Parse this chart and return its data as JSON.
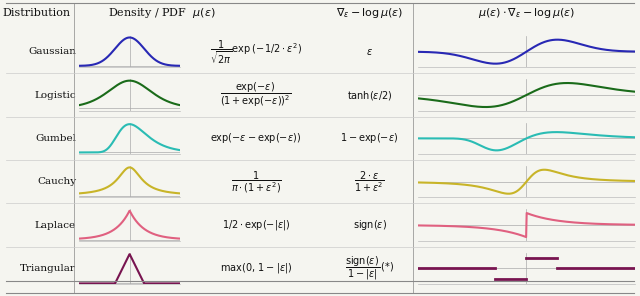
{
  "distributions": [
    "Gaussian",
    "Logistic",
    "Gumbel",
    "Cauchy",
    "Laplace",
    "Triangular"
  ],
  "colors": [
    "#2828b4",
    "#1a6b1a",
    "#2abcb4",
    "#c8b428",
    "#e06080",
    "#781450"
  ],
  "header_texts": {
    "col1": "Distribution",
    "col2": "Density / PDF  $\\mu(\\epsilon)$",
    "col3": "$\\nabla_\\epsilon - \\log \\mu(\\epsilon)$",
    "col4": "$\\mu(\\epsilon) \\cdot \\nabla_\\epsilon - \\log \\mu(\\epsilon)$"
  },
  "pdf_formulas": [
    "$\\dfrac{1}{\\sqrt{2\\pi}} \\exp\\left(-\\,1/2 \\cdot \\epsilon^2\\right)$",
    "$\\dfrac{\\exp(-\\epsilon)}{(1+\\exp(-\\epsilon))^2}$",
    "$\\exp(-\\epsilon - \\exp(-\\epsilon))$",
    "$\\dfrac{1}{\\pi \\cdot (1+\\epsilon^2)}$",
    "$1/2 \\cdot \\exp(-|\\epsilon|)$",
    "$\\max(0,\\, 1 - |\\epsilon|)$"
  ],
  "score_formulas": [
    "$\\epsilon$",
    "$\\tanh(\\epsilon/2)$",
    "$1 - \\exp(-\\epsilon)$",
    "$\\dfrac{2 \\cdot \\epsilon}{1 + \\epsilon^2}$",
    "$\\mathrm{sign}(\\epsilon)$",
    "$\\dfrac{\\mathrm{sign}(\\epsilon)}{1 - |\\epsilon|}\\,(*)$"
  ],
  "background_color": "#f5f5f0",
  "line_color": "#aaaaaa",
  "text_color": "#111111"
}
